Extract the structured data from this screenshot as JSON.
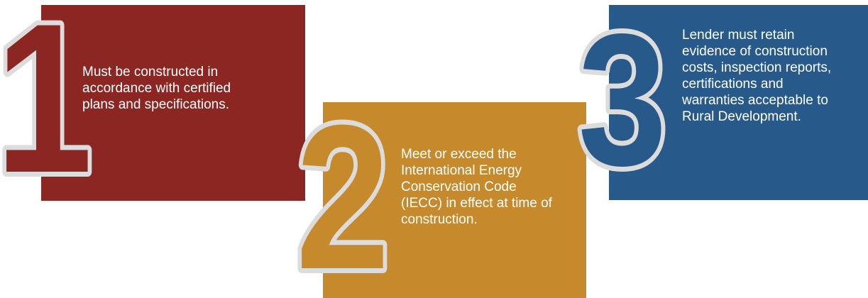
{
  "steps": [
    {
      "number": "1",
      "text": "Must be constructed in accordance with certified plans and specifications.",
      "color": "#8b2623"
    },
    {
      "number": "2",
      "text": "Meet or exceed the International Energy Conservation Code (IECC) in effect at time of construction.",
      "color": "#c68a2d"
    },
    {
      "number": "3",
      "text": "Lender must retain evidence of construction costs, inspection reports, certifications and warranties acceptable to Rural Development.",
      "color": "#275a8a"
    }
  ],
  "outline_color": "#dcdcdc"
}
